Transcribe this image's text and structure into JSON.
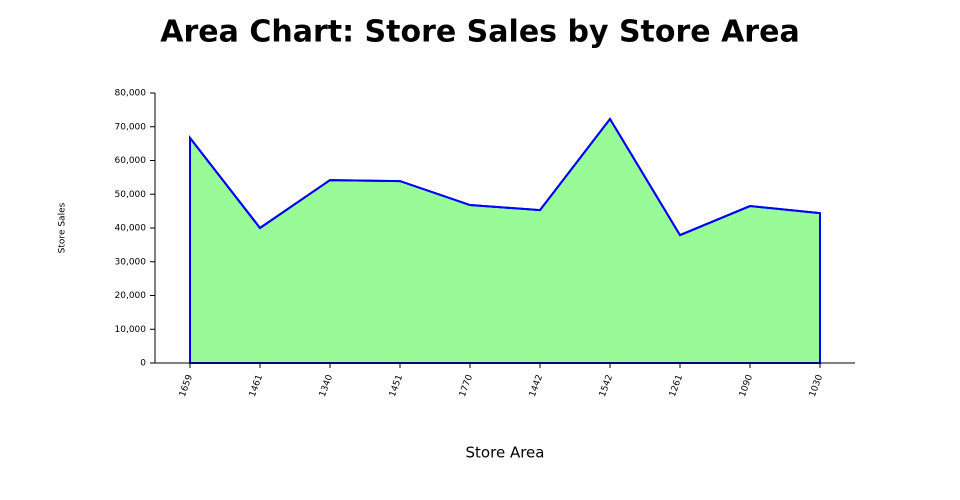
{
  "chart_data": {
    "type": "area",
    "title": "Area Chart: Store Sales by Store Area",
    "x_label": "Store Area",
    "y_label": "Store Sales",
    "categories": [
      "1659",
      "1461",
      "1340",
      "1451",
      "1770",
      "1442",
      "1542",
      "1261",
      "1090",
      "1030"
    ],
    "values": [
      66700,
      40000,
      54200,
      53900,
      46800,
      45300,
      72300,
      37900,
      46500,
      44400
    ],
    "color": "#98fb98",
    "line_color": "#0000ff",
    "ylim": [
      0,
      80000
    ],
    "yticks": [
      0,
      {
        "value": 10000,
        "label": "10,000"
      },
      {
        "value": 20000,
        "label": "20,000"
      },
      {
        "value": 30000,
        "label": "30,000"
      },
      {
        "value": 40000,
        "label": "40,000"
      },
      {
        "value": 50000,
        "label": "50,000"
      },
      {
        "value": 60000,
        "label": "60,000"
      },
      {
        "value": 70000,
        "label": "70,000"
      },
      {
        "value": 80000,
        "label": "80,000"
      }
    ]
  }
}
